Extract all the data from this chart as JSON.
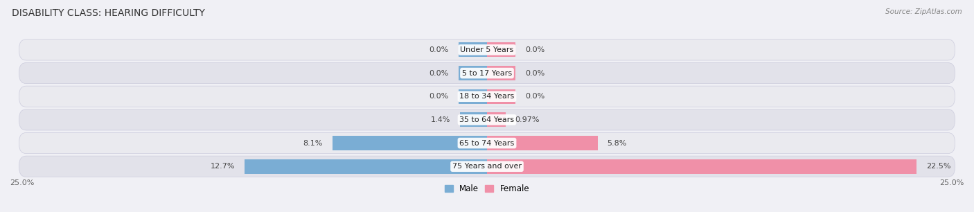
{
  "title": "DISABILITY CLASS: HEARING DIFFICULTY",
  "source": "Source: ZipAtlas.com",
  "categories": [
    "Under 5 Years",
    "5 to 17 Years",
    "18 to 34 Years",
    "35 to 64 Years",
    "65 to 74 Years",
    "75 Years and over"
  ],
  "male_values": [
    0.0,
    0.0,
    0.0,
    1.4,
    8.1,
    12.7
  ],
  "female_values": [
    0.0,
    0.0,
    0.0,
    0.97,
    5.8,
    22.5
  ],
  "male_labels": [
    "0.0%",
    "0.0%",
    "0.0%",
    "1.4%",
    "8.1%",
    "12.7%"
  ],
  "female_labels": [
    "0.0%",
    "0.0%",
    "0.0%",
    "0.97%",
    "5.8%",
    "22.5%"
  ],
  "max_val": 25.0,
  "male_color": "#7aadd4",
  "female_color": "#f090a8",
  "fig_bg": "#f0f0f5",
  "row_bg": "#e8e8ef",
  "axis_label_left": "25.0%",
  "axis_label_right": "25.0%",
  "legend_male": "Male",
  "legend_female": "Female",
  "title_fontsize": 10,
  "source_fontsize": 7.5,
  "label_fontsize": 8,
  "category_fontsize": 8,
  "zero_stub": 1.5
}
